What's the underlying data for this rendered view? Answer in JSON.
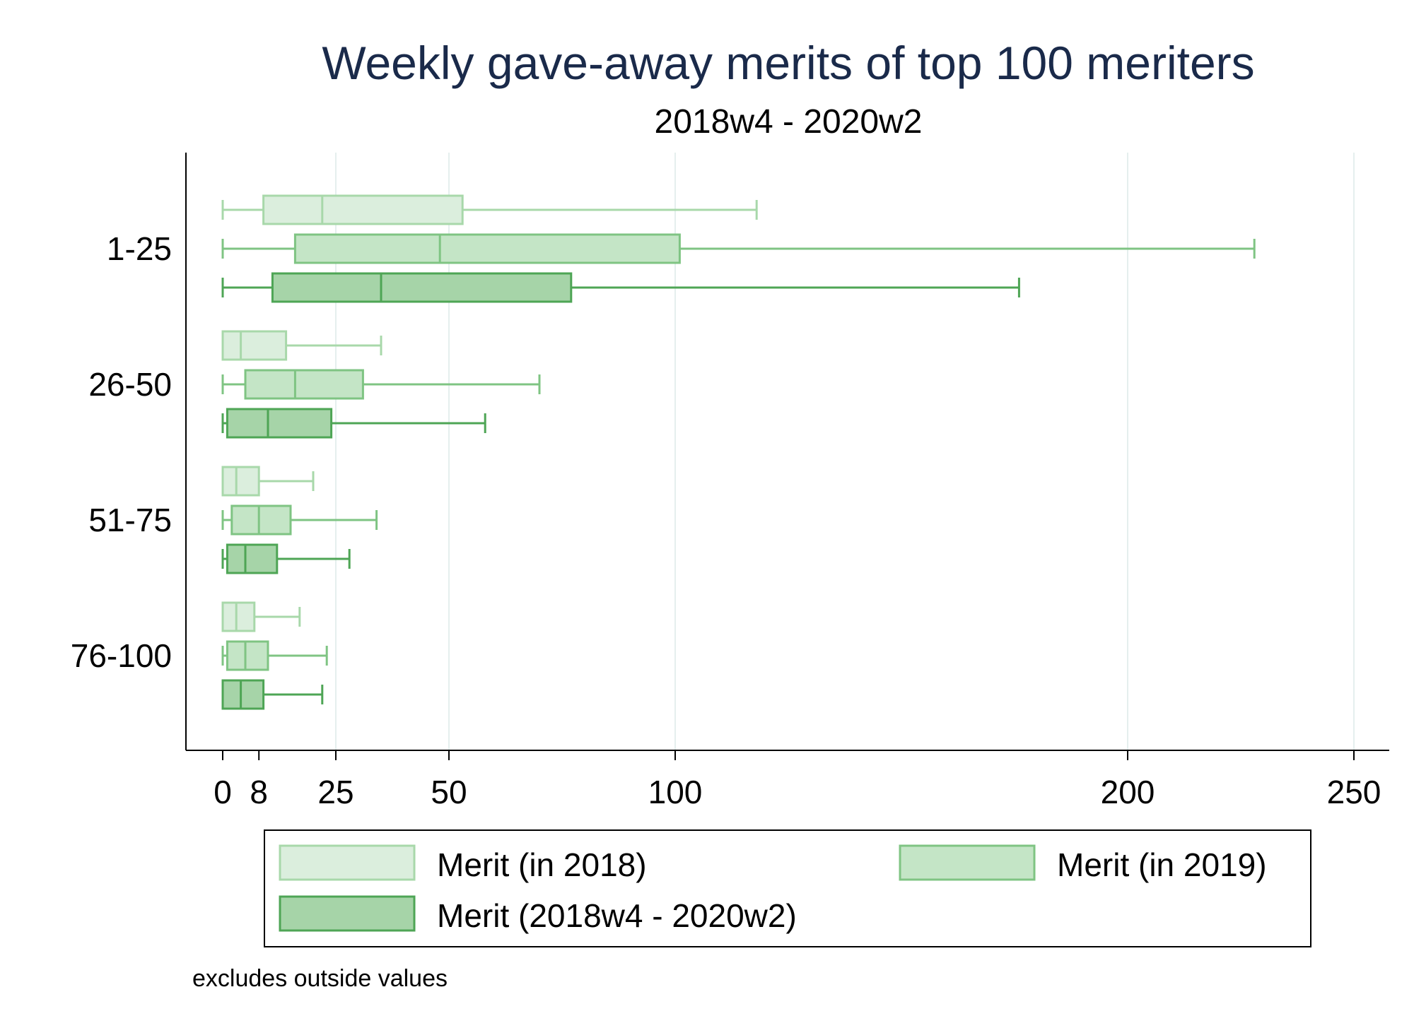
{
  "chart_data": {
    "type": "boxplot",
    "orientation": "horizontal",
    "title": "Weekly gave-away merits of top 100 meriters",
    "subtitle": "2018w4 - 2020w2",
    "note": "excludes outside values",
    "xlim": [
      0,
      250
    ],
    "xticks": [
      0,
      8,
      25,
      50,
      100,
      200,
      250
    ],
    "grid": true,
    "legend_position": "bottom",
    "categories": [
      "1-25",
      "26-50",
      "51-75",
      "76-100"
    ],
    "series": [
      {
        "name": "Merit (in 2018)",
        "fill": "#dbeedd",
        "stroke": "#a8d8aa",
        "boxes": [
          {
            "category": "1-25",
            "min": 0,
            "q1": 9,
            "median": 22,
            "q3": 53,
            "max": 118
          },
          {
            "category": "26-50",
            "min": 0,
            "q1": 0,
            "median": 4,
            "q3": 14,
            "max": 35
          },
          {
            "category": "51-75",
            "min": 0,
            "q1": 0,
            "median": 3,
            "q3": 8,
            "max": 20
          },
          {
            "category": "76-100",
            "min": 0,
            "q1": 0,
            "median": 3,
            "q3": 7,
            "max": 17
          }
        ]
      },
      {
        "name": "Merit (in 2019)",
        "fill": "#c4e5c6",
        "stroke": "#7fc483",
        "boxes": [
          {
            "category": "1-25",
            "min": 0,
            "q1": 16,
            "median": 48,
            "q3": 101,
            "max": 228
          },
          {
            "category": "26-50",
            "min": 0,
            "q1": 5,
            "median": 16,
            "q3": 31,
            "max": 70
          },
          {
            "category": "51-75",
            "min": 0,
            "q1": 2,
            "median": 8,
            "q3": 15,
            "max": 34
          },
          {
            "category": "76-100",
            "min": 0,
            "q1": 1,
            "median": 5,
            "q3": 10,
            "max": 23
          }
        ]
      },
      {
        "name": "Merit (2018w4 - 2020w2)",
        "fill": "#a6d4a8",
        "stroke": "#4ea555",
        "boxes": [
          {
            "category": "1-25",
            "min": 0,
            "q1": 11,
            "median": 35,
            "q3": 77,
            "max": 176
          },
          {
            "category": "26-50",
            "min": 0,
            "q1": 1,
            "median": 10,
            "q3": 24,
            "max": 58
          },
          {
            "category": "51-75",
            "min": 0,
            "q1": 1,
            "median": 5,
            "q3": 12,
            "max": 28
          },
          {
            "category": "76-100",
            "min": 0,
            "q1": 0,
            "median": 4,
            "q3": 9,
            "max": 22
          }
        ]
      }
    ]
  }
}
